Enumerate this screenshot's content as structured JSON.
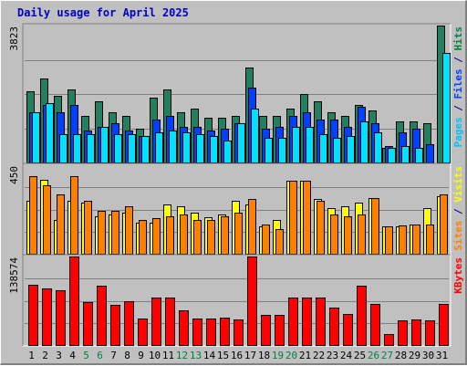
{
  "chart_data": {
    "title": "Daily usage for April 2025",
    "type": "bar",
    "categories": [
      "1",
      "2",
      "3",
      "4",
      "5",
      "6",
      "7",
      "8",
      "9",
      "10",
      "11",
      "12",
      "13",
      "14",
      "15",
      "16",
      "17",
      "18",
      "19",
      "20",
      "21",
      "22",
      "23",
      "24",
      "25",
      "26",
      "27",
      "28",
      "29",
      "30",
      "31"
    ],
    "weekend_days": [
      "5",
      "6",
      "12",
      "13",
      "19",
      "20",
      "26",
      "27"
    ],
    "panels": [
      {
        "id": "pages-files-hits",
        "ymax": 3823,
        "ymax_label": "3823",
        "right_label": [
          {
            "text": "Pages",
            "color": "#00c0ff"
          },
          {
            "text": " / ",
            "color": "#000080"
          },
          {
            "text": "Files",
            "color": "#0040ff"
          },
          {
            "text": " / ",
            "color": "#000080"
          },
          {
            "text": "Hits",
            "color": "#008040"
          }
        ],
        "series": [
          {
            "name": "Hits",
            "color": "#208060",
            "values": [
              2000,
              2350,
              1850,
              2050,
              1300,
              1700,
              1400,
              1300,
              950,
              1800,
              2050,
              1400,
              1500,
              1250,
              1250,
              1300,
              2650,
              1300,
              1300,
              1500,
              1900,
              1700,
              1400,
              1300,
              1600,
              1450,
              400,
              1150,
              1150,
              1100,
              3823
            ]
          },
          {
            "name": "Files",
            "color": "#0040ff",
            "values": [
              1400,
              1600,
              1400,
              1600,
              900,
              1000,
              1100,
              900,
              750,
              1200,
              1300,
              1000,
              1000,
              900,
              950,
              1100,
              2100,
              950,
              1000,
              1300,
              1400,
              1200,
              1200,
              1000,
              1550,
              1100,
              450,
              850,
              950,
              500,
              0
            ]
          },
          {
            "name": "Pages",
            "color": "#00e0ff",
            "values": [
              1400,
              1650,
              800,
              800,
              800,
              1000,
              800,
              800,
              750,
              850,
              900,
              850,
              800,
              750,
              600,
              1100,
              1500,
              700,
              700,
              1000,
              1000,
              800,
              700,
              750,
              1150,
              850,
              400,
              450,
              400,
              0,
              3050
            ]
          }
        ]
      },
      {
        "id": "visits-sites",
        "ymax": 450,
        "ymax_label": "450",
        "right_label": [
          {
            "text": "Sites",
            "color": "#ff8000"
          },
          {
            "text": " / ",
            "color": "#000080"
          },
          {
            "text": "Visits",
            "color": "#ffff00"
          }
        ],
        "series": [
          {
            "name": "Visits",
            "color": "#ffff00",
            "values": [
              270,
              375,
              170,
              270,
              260,
              190,
              200,
              210,
              160,
              160,
              250,
              240,
              210,
              185,
              200,
              270,
              250,
              140,
              170,
              370,
              370,
              280,
              230,
              240,
              260,
              285,
              140,
              140,
              150,
              230,
              290
            ]
          },
          {
            "name": "Sites",
            "color": "#ff8000",
            "values": [
              395,
              350,
              300,
              395,
              270,
              220,
              220,
              240,
              170,
              180,
              190,
              200,
              170,
              170,
              190,
              210,
              280,
              150,
              125,
              370,
              370,
              270,
              200,
              190,
              200,
              285,
              140,
              145,
              150,
              150,
              300
            ]
          }
        ]
      },
      {
        "id": "kbytes",
        "ymax": 138574,
        "ymax_label": "138574",
        "right_label": [
          {
            "text": "KBytes",
            "color": "#ff0000"
          }
        ],
        "series": [
          {
            "name": "KBytes",
            "color": "#ff0000",
            "values": [
              95000,
              89000,
              86000,
              138574,
              67000,
              93000,
              63000,
              69000,
              41000,
              74000,
              74000,
              54000,
              42000,
              42000,
              43000,
              40000,
              138574,
              47000,
              47000,
              74000,
              75000,
              74000,
              58000,
              48000,
              93000,
              64000,
              17000,
              39000,
              40000,
              39000,
              65000
            ]
          }
        ]
      }
    ]
  }
}
